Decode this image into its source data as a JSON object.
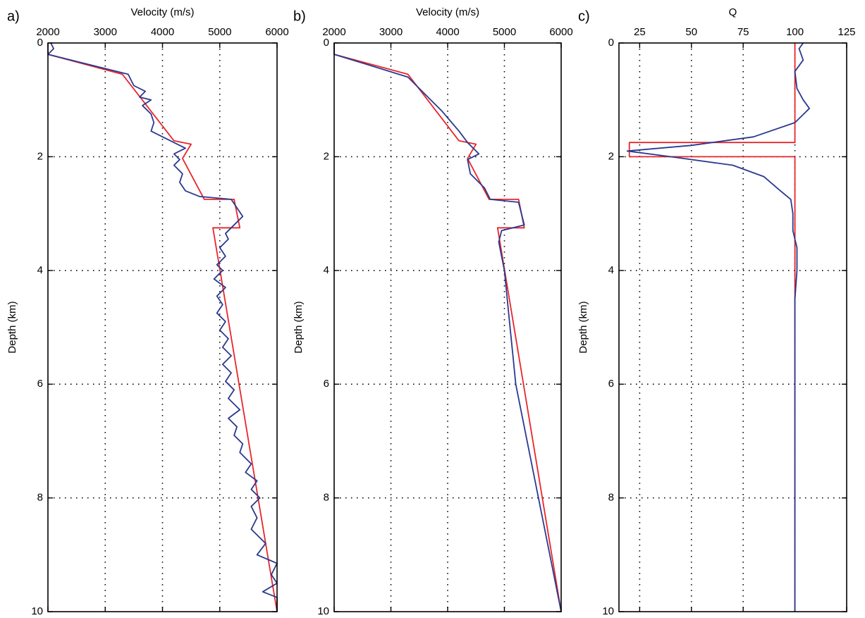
{
  "chart_data": [
    {
      "type": "line",
      "panel_label": "a)",
      "xlabel": "Velocity (m/s)",
      "ylabel": "Depth (km)",
      "xlim": [
        2000,
        6000
      ],
      "xticks": [
        2000,
        3000,
        4000,
        5000,
        6000
      ],
      "ylim": [
        0,
        10
      ],
      "yticks": [
        0,
        2,
        4,
        6,
        8,
        10
      ],
      "y_inverted": true,
      "x_axis_top": true,
      "grid": true,
      "series": [
        {
          "color": "#e8262a",
          "values": [
            2000,
            2000,
            3300,
            4200,
            4500,
            4350,
            4730,
            5250,
            5350,
            4880,
            6000
          ],
          "depth": [
            0,
            0.2,
            0.55,
            1.72,
            1.78,
            2.03,
            2.75,
            2.75,
            3.25,
            3.25,
            10
          ]
        },
        {
          "color": "#2b3990",
          "values": [
            2050,
            2100,
            2000,
            3400,
            3450,
            3500,
            3700,
            3600,
            3800,
            3650,
            3800,
            3850,
            3800,
            4100,
            4400,
            4200,
            4300,
            4200,
            4350,
            4300,
            4400,
            4650,
            5200,
            5300,
            5400,
            5250,
            5100,
            5150,
            5000,
            5100,
            4950,
            5050,
            4900,
            5100,
            4950,
            5050,
            4950,
            5100,
            5000,
            5150,
            5050,
            5200,
            5050,
            5200,
            5100,
            5250,
            5150,
            5350,
            5150,
            5300,
            5250,
            5400,
            5350,
            5550,
            5450,
            5650,
            5550,
            5700,
            5550,
            5650,
            5550,
            5800,
            5650,
            6000,
            5900,
            6000,
            5750,
            6000,
            6000
          ],
          "depth": [
            0,
            0.1,
            0.2,
            0.55,
            0.65,
            0.75,
            0.85,
            0.95,
            1.0,
            1.1,
            1.25,
            1.4,
            1.55,
            1.7,
            1.85,
            1.95,
            2.05,
            2.15,
            2.3,
            2.45,
            2.6,
            2.7,
            2.75,
            2.9,
            3.05,
            3.2,
            3.35,
            3.45,
            3.6,
            3.75,
            3.9,
            4.0,
            4.15,
            4.3,
            4.45,
            4.6,
            4.75,
            4.9,
            5.05,
            5.2,
            5.35,
            5.5,
            5.65,
            5.8,
            5.95,
            6.1,
            6.25,
            6.45,
            6.6,
            6.75,
            6.9,
            7.05,
            7.2,
            7.4,
            7.55,
            7.7,
            7.85,
            8.0,
            8.15,
            8.35,
            8.55,
            8.8,
            9.0,
            9.15,
            9.35,
            9.5,
            9.65,
            9.75,
            10
          ]
        }
      ]
    },
    {
      "type": "line",
      "panel_label": "b)",
      "xlabel": "Velocity (m/s)",
      "ylabel": "Depth (km)",
      "xlim": [
        2000,
        6000
      ],
      "xticks": [
        2000,
        3000,
        4000,
        5000,
        6000
      ],
      "ylim": [
        0,
        10
      ],
      "yticks": [
        0,
        2,
        4,
        6,
        8,
        10
      ],
      "y_inverted": true,
      "x_axis_top": true,
      "grid": true,
      "series": [
        {
          "color": "#e8262a",
          "values": [
            2000,
            2000,
            3300,
            4200,
            4500,
            4350,
            4730,
            5250,
            5350,
            4880,
            6000
          ],
          "depth": [
            0,
            0.2,
            0.55,
            1.72,
            1.78,
            2.03,
            2.75,
            2.75,
            3.25,
            3.25,
            10
          ]
        },
        {
          "color": "#2b3990",
          "values": [
            2000,
            2000,
            3300,
            3600,
            3900,
            4200,
            4350,
            4550,
            4350,
            4400,
            4650,
            4750,
            5250,
            5300,
            5350,
            4950,
            4900,
            5000,
            5050,
            5100,
            5150,
            5200,
            5400,
            5600,
            5800,
            6000
          ],
          "depth": [
            0,
            0.2,
            0.6,
            0.9,
            1.2,
            1.55,
            1.75,
            1.95,
            2.05,
            2.3,
            2.55,
            2.75,
            2.8,
            3.0,
            3.2,
            3.3,
            3.5,
            4.0,
            4.5,
            5.0,
            5.5,
            6.0,
            7.0,
            8.0,
            9.0,
            10
          ]
        }
      ]
    },
    {
      "type": "line",
      "panel_label": "c)",
      "xlabel": "Q",
      "ylabel": "Depth (km)",
      "xlim": [
        15,
        125
      ],
      "xticks": [
        25,
        50,
        75,
        100,
        125
      ],
      "ylim": [
        0,
        10
      ],
      "yticks": [
        0,
        2,
        4,
        6,
        8,
        10
      ],
      "y_inverted": true,
      "x_axis_top": true,
      "grid": true,
      "series": [
        {
          "color": "#e8262a",
          "values": [
            100,
            100,
            20,
            20,
            100,
            100
          ],
          "depth": [
            0,
            1.75,
            1.75,
            2.0,
            2.0,
            10
          ]
        },
        {
          "color": "#2b3990",
          "values": [
            104,
            102,
            104,
            100,
            101,
            104,
            107,
            100,
            80,
            50,
            19,
            40,
            70,
            85,
            93,
            98,
            99,
            99,
            101,
            101,
            100,
            100
          ],
          "depth": [
            0,
            0.1,
            0.3,
            0.5,
            0.8,
            1.0,
            1.15,
            1.4,
            1.65,
            1.8,
            1.9,
            2.0,
            2.15,
            2.35,
            2.6,
            2.75,
            3.0,
            3.3,
            3.6,
            4.0,
            4.5,
            10
          ]
        }
      ]
    }
  ]
}
